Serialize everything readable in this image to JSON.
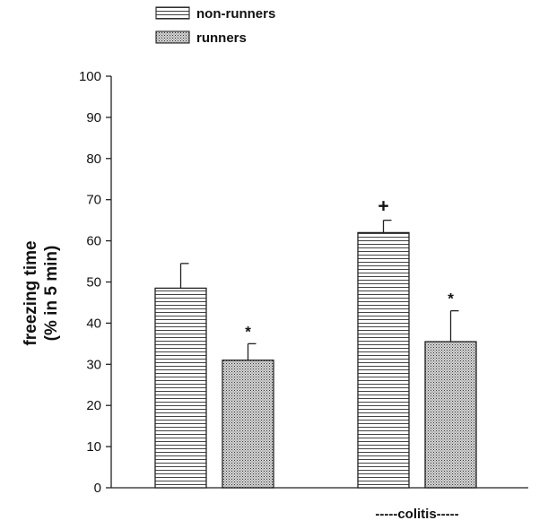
{
  "chart_data": {
    "type": "bar",
    "ylabel_lines": [
      "freezing time",
      "(% in 5 min)"
    ],
    "ylim": [
      0,
      100
    ],
    "yticks": [
      0,
      10,
      20,
      30,
      40,
      50,
      60,
      70,
      80,
      90,
      100
    ],
    "group_labels": [
      "",
      "-----colitis-----"
    ],
    "legend_position": "top-left",
    "grid": false,
    "series": [
      {
        "name": "non-runners",
        "pattern": "horizontal-lines",
        "values": [
          48.5,
          62.0
        ],
        "errors": [
          6.0,
          3.0
        ]
      },
      {
        "name": "runners",
        "pattern": "crosshatch-dots",
        "values": [
          31.0,
          35.5
        ],
        "errors": [
          4.0,
          7.5
        ]
      }
    ],
    "annotations": [
      {
        "group": 0,
        "series": 1,
        "text": "*"
      },
      {
        "group": 1,
        "series": 0,
        "text": "+"
      },
      {
        "group": 1,
        "series": 1,
        "text": "*"
      }
    ]
  }
}
